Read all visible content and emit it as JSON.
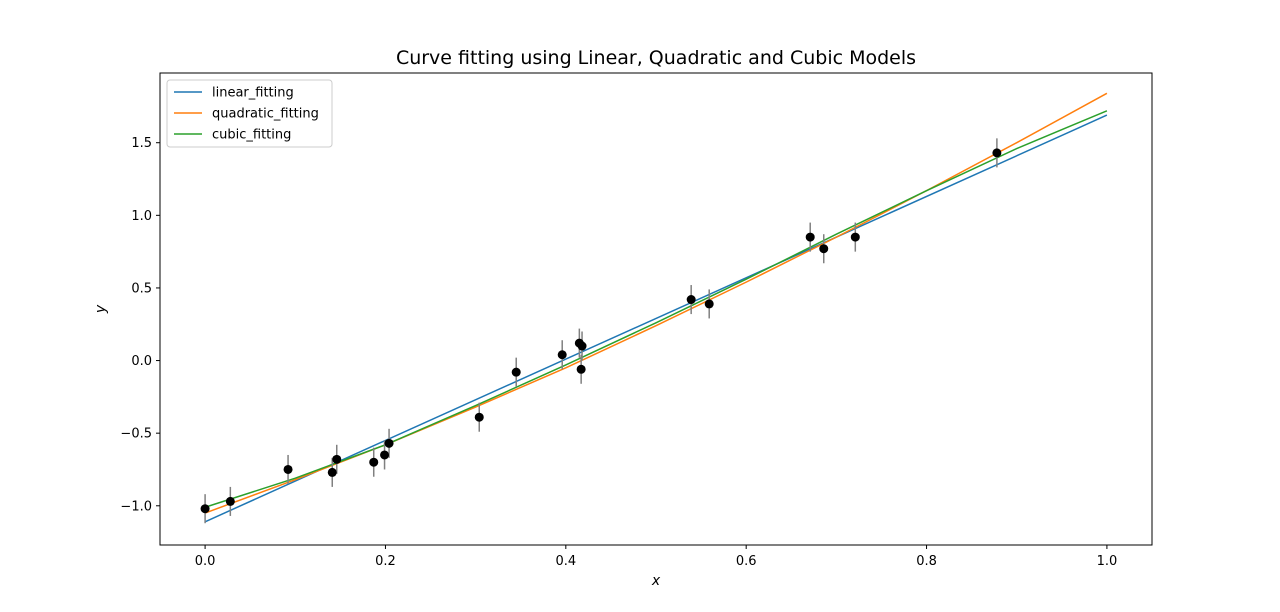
{
  "chart_data": {
    "type": "scatter",
    "title": "Curve fitting using Linear, Quadratic and Cubic Models",
    "xlabel": "x",
    "ylabel": "y",
    "xlim": [
      -0.05,
      1.05
    ],
    "ylim": [
      -1.27,
      1.98
    ],
    "x_ticks": [
      0.0,
      0.2,
      0.4,
      0.6,
      0.8,
      1.0
    ],
    "x_tick_labels": [
      "0.0",
      "0.2",
      "0.4",
      "0.6",
      "0.8",
      "1.0"
    ],
    "y_ticks": [
      -1.0,
      -0.5,
      0.0,
      0.5,
      1.0,
      1.5
    ],
    "y_tick_labels": [
      "−1.0",
      "−0.5",
      "0.0",
      "0.5",
      "1.0",
      "1.5"
    ],
    "grid": false,
    "legend_position": "top-left",
    "points": {
      "color": "#000000",
      "error_color": "#808080",
      "data": [
        {
          "x": 0.0,
          "y": -1.02,
          "err": 0.1
        },
        {
          "x": 0.028,
          "y": -0.97,
          "err": 0.1
        },
        {
          "x": 0.092,
          "y": -0.75,
          "err": 0.1
        },
        {
          "x": 0.141,
          "y": -0.77,
          "err": 0.1
        },
        {
          "x": 0.146,
          "y": -0.68,
          "err": 0.1
        },
        {
          "x": 0.187,
          "y": -0.7,
          "err": 0.1
        },
        {
          "x": 0.199,
          "y": -0.65,
          "err": 0.1
        },
        {
          "x": 0.204,
          "y": -0.57,
          "err": 0.1
        },
        {
          "x": 0.304,
          "y": -0.39,
          "err": 0.1
        },
        {
          "x": 0.345,
          "y": -0.08,
          "err": 0.1
        },
        {
          "x": 0.396,
          "y": 0.04,
          "err": 0.1
        },
        {
          "x": 0.415,
          "y": 0.12,
          "err": 0.1
        },
        {
          "x": 0.418,
          "y": 0.1,
          "err": 0.1
        },
        {
          "x": 0.417,
          "y": -0.06,
          "err": 0.1
        },
        {
          "x": 0.539,
          "y": 0.42,
          "err": 0.1
        },
        {
          "x": 0.559,
          "y": 0.39,
          "err": 0.1
        },
        {
          "x": 0.671,
          "y": 0.85,
          "err": 0.1
        },
        {
          "x": 0.686,
          "y": 0.77,
          "err": 0.1
        },
        {
          "x": 0.721,
          "y": 0.85,
          "err": 0.1
        },
        {
          "x": 0.878,
          "y": 1.43,
          "err": 0.1
        }
      ]
    },
    "series": [
      {
        "name": "linear_fitting",
        "color": "#1f77b4",
        "kind": "line",
        "x": [
          0.0,
          1.0
        ],
        "y": [
          -1.11,
          1.69
        ]
      },
      {
        "name": "quadratic_fitting",
        "color": "#ff7f0e",
        "kind": "line",
        "x": [
          0.0,
          0.1,
          0.2,
          0.3,
          0.4,
          0.5,
          0.6,
          0.7,
          0.8,
          0.9,
          1.0
        ],
        "y": [
          -1.05,
          -0.82,
          -0.58,
          -0.32,
          -0.05,
          0.24,
          0.54,
          0.85,
          1.17,
          1.5,
          1.84
        ]
      },
      {
        "name": "cubic_fitting",
        "color": "#2ca02c",
        "kind": "line",
        "x": [
          0.0,
          0.1,
          0.2,
          0.3,
          0.4,
          0.5,
          0.6,
          0.7,
          0.8,
          0.9,
          1.0
        ],
        "y": [
          -1.01,
          -0.81,
          -0.58,
          -0.31,
          -0.03,
          0.26,
          0.56,
          0.87,
          1.17,
          1.46,
          1.72
        ]
      }
    ]
  }
}
